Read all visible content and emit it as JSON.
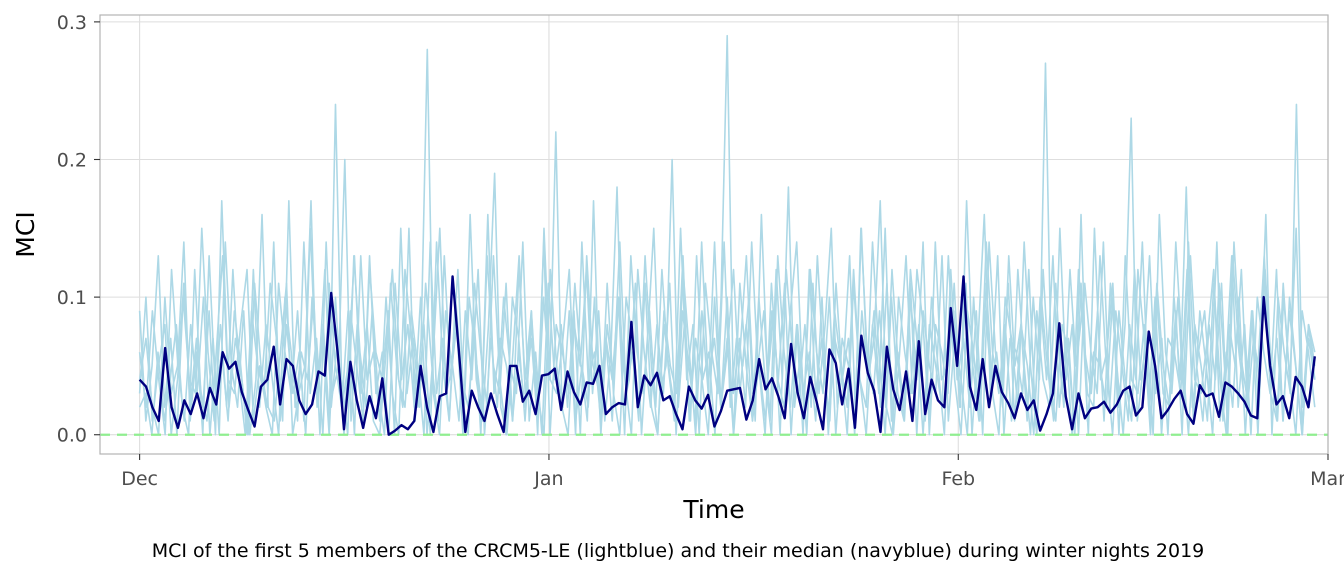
{
  "chart_data": {
    "type": "line",
    "title": "",
    "xlabel": "Time",
    "ylabel": "MCI",
    "caption": "MCI of the first 5 members of the CRCM5-LE (lightblue) and their median (navyblue) during winter nights 2019",
    "x_start": "2018-12-01",
    "x_end": "2019-02-28",
    "xlim": [
      "2018-11-28",
      "2019-03-01"
    ],
    "ylim": [
      -0.014,
      0.305
    ],
    "x_ticks": [
      {
        "label": "Dec",
        "date": "2018-12-01"
      },
      {
        "label": "Jan",
        "date": "2019-01-01"
      },
      {
        "label": "Feb",
        "date": "2019-02-01"
      },
      {
        "label": "Mar",
        "date": "2019-03-01"
      }
    ],
    "y_ticks": [
      {
        "label": "0.0",
        "value": 0.0
      },
      {
        "label": "0.1",
        "value": 0.1
      },
      {
        "label": "0.2",
        "value": 0.2
      },
      {
        "label": "0.3",
        "value": 0.3
      }
    ],
    "grid": true,
    "colors": {
      "members": "#add8e6",
      "median": "#000080",
      "zero_line": "#90ee90",
      "grid": "#dedede",
      "panel_border": "#b3b3b3"
    },
    "reference_line": {
      "y": 0.0,
      "style": "dashed",
      "color": "#90ee90"
    },
    "series": [
      {
        "values": [
          0.02,
          0.03,
          0.0,
          0.06,
          0.01,
          0.04,
          0.08,
          0.02,
          0.0,
          0.12,
          0.03,
          0.01,
          0.07,
          0.0,
          0.14,
          0.05,
          0.02,
          0.09,
          0.0,
          0.04,
          0.16,
          0.02,
          0.01,
          0.06,
          0.11,
          0.0,
          0.03,
          0.05,
          0.17,
          0.02,
          0.08,
          0.01,
          0.24,
          0.04,
          0.0,
          0.13,
          0.06,
          0.02,
          0.09,
          0.03,
          0.0,
          0.11,
          0.05,
          0.02,
          0.15,
          0.01,
          0.07,
          0.28,
          0.03,
          0.0,
          0.09,
          0.05,
          0.12,
          0.02,
          0.16,
          0.04,
          0.01,
          0.08,
          0.19,
          0.02,
          0.0,
          0.06,
          0.13,
          0.03,
          0.07,
          0.01,
          0.1,
          0.04,
          0.22,
          0.02,
          0.0,
          0.08,
          0.05,
          0.12,
          0.03,
          0.09,
          0.01,
          0.06,
          0.18,
          0.02,
          0.04,
          0.11,
          0.0,
          0.07,
          0.15,
          0.03,
          0.05,
          0.2,
          0.02,
          0.08,
          0.01,
          0.13,
          0.04,
          0.06,
          0.0,
          0.1,
          0.29,
          0.03,
          0.07,
          0.02,
          0.14,
          0.05,
          0.09,
          0.01,
          0.12,
          0.04,
          0.18,
          0.02,
          0.06,
          0.0,
          0.11,
          0.03,
          0.08,
          0.15,
          0.02,
          0.05,
          0.13,
          0.01,
          0.09,
          0.04,
          0.07,
          0.17,
          0.02,
          0.0,
          0.1,
          0.06,
          0.03,
          0.12,
          0.08,
          0.01,
          0.14,
          0.04,
          0.05,
          0.09,
          0.02,
          0.11,
          0.0,
          0.07,
          0.16,
          0.03,
          0.06,
          0.02,
          0.13,
          0.05,
          0.08,
          0.01,
          0.1,
          0.04,
          0.27,
          0.03,
          0.07,
          0.02,
          0.12,
          0.05,
          0.09,
          0.0,
          0.15,
          0.04,
          0.06,
          0.11,
          0.02,
          0.08,
          0.23,
          0.01,
          0.05,
          0.13,
          0.03,
          0.07,
          0.0,
          0.1,
          0.04,
          0.18,
          0.02,
          0.06,
          0.09,
          0.03,
          0.14,
          0.01,
          0.08,
          0.05,
          0.12,
          0.02,
          0.07,
          0.04,
          0.16,
          0.0,
          0.1,
          0.06,
          0.03,
          0.24,
          0.02,
          0.08,
          0.05
        ]
      },
      {
        "values": [
          0.09,
          0.01,
          0.05,
          0.13,
          0.02,
          0.07,
          0.0,
          0.1,
          0.04,
          0.03,
          0.15,
          0.06,
          0.01,
          0.08,
          0.02,
          0.12,
          0.04,
          0.0,
          0.09,
          0.05,
          0.03,
          0.11,
          0.07,
          0.01,
          0.17,
          0.02,
          0.06,
          0.04,
          0.1,
          0.0,
          0.14,
          0.03,
          0.05,
          0.2,
          0.01,
          0.08,
          0.02,
          0.12,
          0.06,
          0.04,
          0.09,
          0.0,
          0.15,
          0.03,
          0.07,
          0.02,
          0.11,
          0.05,
          0.01,
          0.13,
          0.04,
          0.08,
          0.0,
          0.1,
          0.06,
          0.02,
          0.16,
          0.03,
          0.07,
          0.05,
          0.01,
          0.12,
          0.04,
          0.09,
          0.02,
          0.14,
          0.0,
          0.08,
          0.06,
          0.03,
          0.11,
          0.05,
          0.01,
          0.17,
          0.02,
          0.07,
          0.04,
          0.1,
          0.0,
          0.13,
          0.06,
          0.03,
          0.09,
          0.02,
          0.12,
          0.05,
          0.01,
          0.15,
          0.04,
          0.08,
          0.0,
          0.11,
          0.06,
          0.03,
          0.14,
          0.02,
          0.07,
          0.05,
          0.1,
          0.01,
          0.16,
          0.04,
          0.09,
          0.0,
          0.12,
          0.06,
          0.03,
          0.08,
          0.02,
          0.13,
          0.05,
          0.01,
          0.11,
          0.04,
          0.07,
          0.0,
          0.15,
          0.06,
          0.03,
          0.09,
          0.02,
          0.12,
          0.05,
          0.01,
          0.1,
          0.04,
          0.14,
          0.0,
          0.08,
          0.06,
          0.03,
          0.11,
          0.02,
          0.17,
          0.05,
          0.01,
          0.09,
          0.04,
          0.13,
          0.0,
          0.07,
          0.06,
          0.03,
          0.12,
          0.02,
          0.1,
          0.05,
          0.01,
          0.15,
          0.04,
          0.08,
          0.0,
          0.11,
          0.06,
          0.03,
          0.14,
          0.02,
          0.09,
          0.05,
          0.01,
          0.12,
          0.04,
          0.07,
          0.0,
          0.16,
          0.06,
          0.03,
          0.1,
          0.02,
          0.13,
          0.05,
          0.01,
          0.08,
          0.04,
          0.11,
          0.0,
          0.14,
          0.06,
          0.03,
          0.09,
          0.02,
          0.12,
          0.05,
          0.01,
          0.1,
          0.04,
          0.15,
          0.0,
          0.08,
          0.06
        ]
      },
      {
        "values": [
          0.04,
          0.07,
          0.02,
          0.0,
          0.1,
          0.03,
          0.05,
          0.14,
          0.01,
          0.06,
          0.02,
          0.09,
          0.0,
          0.17,
          0.04,
          0.03,
          0.08,
          0.12,
          0.01,
          0.05,
          0.02,
          0.0,
          0.11,
          0.06,
          0.03,
          0.09,
          0.01,
          0.15,
          0.04,
          0.07,
          0.0,
          0.1,
          0.02,
          0.05,
          0.13,
          0.03,
          0.08,
          0.01,
          0.0,
          0.06,
          0.12,
          0.04,
          0.02,
          0.09,
          0.05,
          0.0,
          0.14,
          0.03,
          0.07,
          0.01,
          0.1,
          0.04,
          0.02,
          0.08,
          0.0,
          0.13,
          0.05,
          0.03,
          0.11,
          0.01,
          0.06,
          0.02,
          0.09,
          0.0,
          0.15,
          0.04,
          0.03,
          0.07,
          0.12,
          0.01,
          0.05,
          0.02,
          0.1,
          0.0,
          0.08,
          0.04,
          0.14,
          0.03,
          0.06,
          0.01,
          0.11,
          0.02,
          0.0,
          0.09,
          0.05,
          0.03,
          0.13,
          0.01,
          0.07,
          0.04,
          0.0,
          0.1,
          0.02,
          0.06,
          0.12,
          0.03,
          0.08,
          0.01,
          0.05,
          0.0,
          0.11,
          0.04,
          0.02,
          0.09,
          0.14,
          0.03,
          0.06,
          0.01,
          0.1,
          0.0,
          0.07,
          0.05,
          0.02,
          0.12,
          0.04,
          0.0,
          0.08,
          0.03,
          0.15,
          0.01,
          0.06,
          0.02,
          0.11,
          0.0,
          0.09,
          0.05,
          0.03,
          0.13,
          0.01,
          0.07,
          0.04,
          0.0,
          0.1,
          0.02,
          0.14,
          0.06,
          0.03,
          0.08,
          0.01,
          0.12,
          0.05,
          0.0,
          0.09,
          0.04,
          0.02,
          0.11,
          0.03,
          0.07,
          0.0,
          0.16,
          0.01,
          0.06,
          0.05,
          0.02,
          0.1,
          0.0,
          0.13,
          0.04,
          0.03,
          0.08,
          0.01,
          0.11,
          0.05,
          0.02,
          0.09,
          0.0,
          0.14,
          0.04,
          0.03,
          0.07,
          0.12,
          0.01,
          0.06,
          0.02,
          0.1,
          0.0,
          0.08,
          0.05,
          0.13,
          0.03,
          0.01,
          0.11,
          0.04,
          0.0,
          0.09,
          0.06,
          0.02
        ]
      },
      {
        "values": [
          0.06,
          0.02,
          0.09,
          0.04,
          0.0,
          0.12,
          0.05,
          0.01,
          0.08,
          0.03,
          0.1,
          0.0,
          0.06,
          0.13,
          0.02,
          0.07,
          0.04,
          0.0,
          0.11,
          0.05,
          0.02,
          0.14,
          0.01,
          0.08,
          0.03,
          0.06,
          0.0,
          0.1,
          0.04,
          0.12,
          0.02,
          0.07,
          0.0,
          0.09,
          0.05,
          0.01,
          0.13,
          0.03,
          0.06,
          0.0,
          0.11,
          0.04,
          0.08,
          0.02,
          0.1,
          0.0,
          0.06,
          0.15,
          0.03,
          0.05,
          0.01,
          0.09,
          0.04,
          0.12,
          0.0,
          0.07,
          0.02,
          0.1,
          0.05,
          0.03,
          0.14,
          0.01,
          0.06,
          0.0,
          0.11,
          0.04,
          0.08,
          0.02,
          0.09,
          0.0,
          0.13,
          0.05,
          0.03,
          0.07,
          0.01,
          0.1,
          0.04,
          0.0,
          0.12,
          0.06,
          0.02,
          0.08,
          0.03,
          0.11,
          0.0,
          0.09,
          0.05,
          0.01,
          0.14,
          0.04,
          0.07,
          0.02,
          0.1,
          0.0,
          0.06,
          0.13,
          0.03,
          0.05,
          0.01,
          0.09,
          0.04,
          0.11,
          0.0,
          0.08,
          0.02,
          0.12,
          0.06,
          0.03,
          0.1,
          0.0,
          0.07,
          0.05,
          0.01,
          0.15,
          0.04,
          0.09,
          0.02,
          0.11,
          0.0,
          0.06,
          0.13,
          0.03,
          0.08,
          0.01,
          0.1,
          0.05,
          0.0,
          0.12,
          0.04,
          0.07,
          0.02,
          0.09,
          0.0,
          0.14,
          0.06,
          0.03,
          0.11,
          0.01,
          0.08,
          0.05,
          0.0,
          0.1,
          0.04,
          0.13,
          0.02,
          0.07,
          0.0,
          0.12,
          0.06,
          0.03,
          0.09,
          0.01,
          0.11,
          0.05,
          0.0,
          0.08,
          0.04,
          0.14,
          0.02,
          0.1,
          0.0,
          0.07,
          0.06,
          0.03,
          0.12,
          0.01,
          0.09,
          0.05,
          0.0,
          0.11,
          0.04,
          0.13,
          0.02,
          0.08,
          0.0,
          0.1,
          0.06,
          0.03,
          0.12,
          0.01,
          0.09,
          0.05,
          0.0,
          0.07,
          0.04
        ]
      },
      {
        "values": [
          0.03,
          0.1,
          0.01,
          0.05,
          0.08,
          0.0,
          0.04,
          0.11,
          0.02,
          0.07,
          0.0,
          0.13,
          0.03,
          0.06,
          0.01,
          0.09,
          0.05,
          0.0,
          0.12,
          0.02,
          0.08,
          0.04,
          0.0,
          0.1,
          0.06,
          0.01,
          0.14,
          0.03,
          0.07,
          0.0,
          0.11,
          0.05,
          0.02,
          0.09,
          0.0,
          0.13,
          0.04,
          0.06,
          0.01,
          0.1,
          0.03,
          0.0,
          0.12,
          0.07,
          0.02,
          0.08,
          0.0,
          0.14,
          0.05,
          0.01,
          0.09,
          0.03,
          0.0,
          0.11,
          0.06,
          0.02,
          0.13,
          0.04,
          0.0,
          0.1,
          0.07,
          0.01,
          0.08,
          0.03,
          0.0,
          0.12,
          0.05,
          0.02,
          0.09,
          0.0,
          0.14,
          0.04,
          0.06,
          0.01,
          0.11,
          0.03,
          0.0,
          0.1,
          0.07,
          0.02,
          0.13,
          0.05,
          0.0,
          0.08,
          0.04,
          0.01,
          0.12,
          0.06,
          0.0,
          0.09,
          0.03,
          0.14,
          0.02,
          0.07,
          0.0,
          0.11,
          0.05,
          0.01,
          0.1,
          0.04,
          0.0,
          0.13,
          0.06,
          0.02,
          0.08,
          0.0,
          0.12,
          0.03,
          0.07,
          0.01,
          0.09,
          0.05,
          0.0,
          0.11,
          0.04,
          0.02,
          0.14,
          0.06,
          0.0,
          0.1,
          0.03,
          0.01,
          0.12,
          0.07,
          0.0,
          0.08,
          0.05,
          0.02,
          0.13,
          0.04,
          0.0,
          0.09,
          0.06,
          0.01,
          0.11,
          0.03,
          0.0,
          0.1,
          0.07,
          0.02,
          0.14,
          0.05,
          0.0,
          0.12,
          0.04,
          0.01,
          0.08,
          0.06,
          0.0,
          0.11,
          0.03,
          0.02,
          0.13,
          0.05,
          0.0,
          0.09,
          0.04,
          0.01,
          0.12,
          0.07,
          0.0,
          0.1,
          0.03,
          0.02,
          0.14,
          0.06,
          0.0,
          0.08,
          0.05,
          0.01,
          0.11,
          0.04,
          0.0,
          0.13,
          0.06,
          0.02,
          0.09,
          0.0,
          0.12,
          0.03,
          0.07,
          0.01,
          0.1,
          0.05,
          0.0,
          0.08,
          0.04
        ]
      },
      {
        "values": [
          0.04,
          0.035,
          0.02,
          0.01,
          0.063,
          0.02,
          0.005,
          0.025,
          0.015,
          0.03,
          0.012,
          0.034,
          0.022,
          0.06,
          0.048,
          0.053,
          0.031,
          0.018,
          0.006,
          0.035,
          0.04,
          0.064,
          0.022,
          0.055,
          0.05,
          0.025,
          0.015,
          0.022,
          0.046,
          0.043,
          0.103,
          0.06,
          0.004,
          0.053,
          0.025,
          0.005,
          0.028,
          0.012,
          0.041,
          0.0,
          0.003,
          0.007,
          0.004,
          0.01,
          0.05,
          0.02,
          0.002,
          0.028,
          0.03,
          0.115,
          0.06,
          0.002,
          0.032,
          0.02,
          0.01,
          0.03,
          0.015,
          0.002,
          0.05,
          0.05,
          0.024,
          0.032,
          0.015,
          0.043,
          0.044,
          0.048,
          0.018,
          0.046,
          0.031,
          0.022,
          0.038,
          0.037,
          0.05,
          0.015,
          0.02,
          0.023,
          0.022,
          0.082,
          0.02,
          0.043,
          0.036,
          0.045,
          0.025,
          0.028,
          0.015,
          0.004,
          0.035,
          0.025,
          0.019,
          0.029,
          0.006,
          0.017,
          0.032,
          0.033,
          0.034,
          0.011,
          0.025,
          0.055,
          0.033,
          0.041,
          0.028,
          0.012,
          0.066,
          0.031,
          0.012,
          0.042,
          0.024,
          0.004,
          0.062,
          0.052,
          0.022,
          0.048,
          0.005,
          0.072,
          0.045,
          0.032,
          0.002,
          0.064,
          0.033,
          0.018,
          0.046,
          0.01,
          0.068,
          0.015,
          0.04,
          0.025,
          0.02,
          0.092,
          0.05,
          0.115,
          0.035,
          0.018,
          0.055,
          0.02,
          0.05,
          0.031,
          0.023,
          0.012,
          0.03,
          0.018,
          0.025,
          0.003,
          0.015,
          0.03,
          0.081,
          0.028,
          0.004,
          0.03,
          0.012,
          0.019,
          0.02,
          0.024,
          0.016,
          0.022,
          0.032,
          0.035,
          0.014,
          0.02,
          0.075,
          0.05,
          0.012,
          0.018,
          0.026,
          0.032,
          0.015,
          0.008,
          0.036,
          0.028,
          0.03,
          0.013,
          0.038,
          0.035,
          0.03,
          0.024,
          0.014,
          0.012,
          0.1,
          0.05,
          0.022,
          0.028,
          0.012,
          0.042,
          0.035,
          0.02,
          0.057
        ]
      }
    ]
  }
}
